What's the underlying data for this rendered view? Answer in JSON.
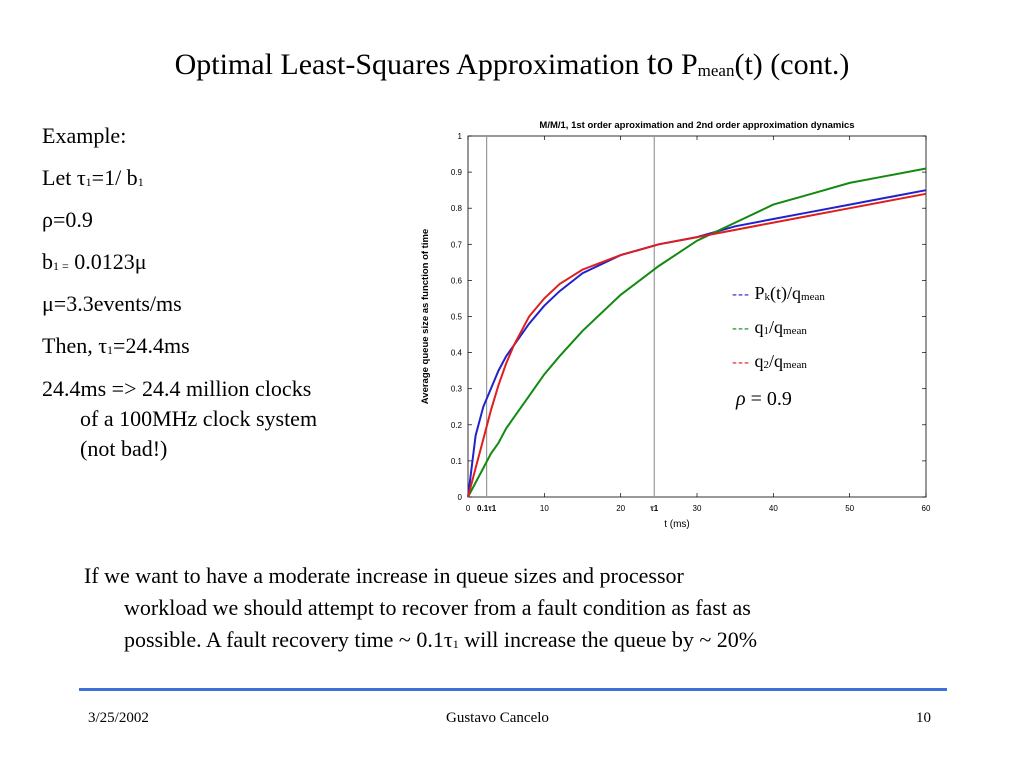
{
  "slide": {
    "title_main": "Optimal Least-Squares Approximation",
    "title_to": "to",
    "title_p": "P",
    "title_sub": "mean",
    "title_end": "(t) (cont.)"
  },
  "left": {
    "example": "Example:",
    "let_a": "Let τ",
    "let_sub1": "1",
    "let_b": "=1/ b",
    "let_sub2": "1",
    "rho": "ρ=0.9",
    "b_a": "b",
    "b_sub": "1 =",
    "b_b": " 0.0123μ",
    "mu": "μ=3.3events/ms",
    "then_a": "Then, τ",
    "then_sub": "1",
    "then_b": "=24.4ms",
    "clocks_1": "24.4ms => 24.4 million clocks",
    "clocks_2": "of a 100MHz clock system",
    "clocks_3": "(not bad!)"
  },
  "paragraph": {
    "line1": "If we want to have a moderate increase in queue sizes and processor",
    "line2": "workload we should attempt to recover from a fault condition as fast as",
    "line3a": "possible. A fault recovery time ~ 0.1τ",
    "line3sub": "1",
    "line3b": " will increase the queue by ~ 20%"
  },
  "legend": {
    "dash": "---",
    "l1_a": "P",
    "l1_sub": "k",
    "l1_b": "(t)/q",
    "l1_sub2": "mean",
    "l2_a": "q",
    "l2_sub": "1",
    "l2_b": "/q",
    "l2_sub2": "mean",
    "l3_a": "q",
    "l3_sub": "2",
    "l3_b": "/q",
    "l3_sub2": "mean",
    "rho_sym": "ρ",
    "rho_val": " = 0.9"
  },
  "footer": {
    "date": "3/25/2002",
    "author": "Gustavo Cancelo",
    "page": "10"
  },
  "colors": {
    "pk": "#2222cc",
    "q1": "#128a12",
    "q2": "#dd1f1f",
    "rule": "#3f6fd8"
  },
  "chart_data": {
    "type": "line",
    "title": "M/M/1, 1st order aproximation and 2nd order approximation dynamics",
    "xlabel": "t (ms)",
    "ylabel": "Average queue size as function of time",
    "xlim": [
      0,
      60
    ],
    "ylim": [
      0,
      1
    ],
    "xticks": [
      0,
      10,
      20,
      30,
      40,
      50,
      60
    ],
    "yticks": [
      0,
      0.1,
      0.2,
      0.3,
      0.4,
      0.5,
      0.6,
      0.7,
      0.8,
      0.9,
      1
    ],
    "special_xticks": [
      {
        "x": 2.44,
        "label": "0.1τ1"
      },
      {
        "x": 24.4,
        "label": "τ1"
      }
    ],
    "vlines": [
      2.44,
      24.4
    ],
    "series": [
      {
        "name": "Pk(t)/qmean",
        "color": "#2222cc",
        "x": [
          0,
          1,
          2,
          3,
          4,
          5,
          6,
          8,
          10,
          12,
          15,
          20,
          25,
          30,
          35,
          40,
          45,
          50,
          55,
          60
        ],
        "y": [
          0,
          0.17,
          0.25,
          0.3,
          0.35,
          0.39,
          0.42,
          0.48,
          0.53,
          0.57,
          0.62,
          0.67,
          0.7,
          0.72,
          0.75,
          0.77,
          0.79,
          0.81,
          0.83,
          0.85
        ]
      },
      {
        "name": "q1/qmean",
        "color": "#128a12",
        "x": [
          0,
          1,
          2,
          3,
          4,
          5,
          6,
          8,
          10,
          12,
          15,
          20,
          25,
          30,
          35,
          40,
          45,
          50,
          55,
          60
        ],
        "y": [
          0,
          0.04,
          0.08,
          0.12,
          0.15,
          0.19,
          0.22,
          0.28,
          0.34,
          0.39,
          0.46,
          0.56,
          0.64,
          0.71,
          0.76,
          0.81,
          0.84,
          0.87,
          0.89,
          0.91
        ]
      },
      {
        "name": "q2/qmean",
        "color": "#dd1f1f",
        "x": [
          0,
          1,
          2,
          3,
          4,
          5,
          6,
          8,
          10,
          12,
          15,
          20,
          25,
          30,
          35,
          40,
          45,
          50,
          55,
          60
        ],
        "y": [
          0,
          0.08,
          0.16,
          0.24,
          0.31,
          0.37,
          0.42,
          0.5,
          0.55,
          0.59,
          0.63,
          0.67,
          0.7,
          0.72,
          0.74,
          0.76,
          0.78,
          0.8,
          0.82,
          0.84
        ]
      }
    ]
  }
}
